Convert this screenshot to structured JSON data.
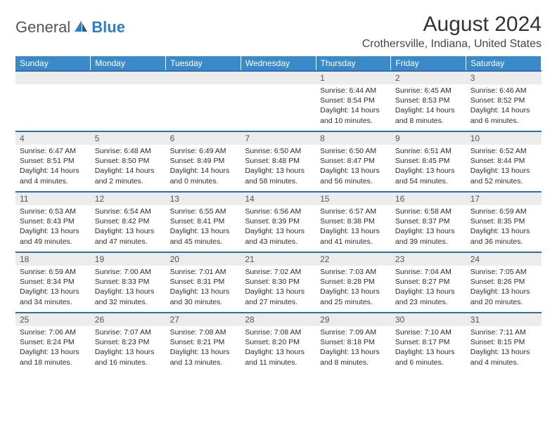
{
  "brand": {
    "part1": "General",
    "part2": "Blue"
  },
  "title": "August 2024",
  "location": "Crothersville, Indiana, United States",
  "colors": {
    "header_band": "#3a8ac9",
    "row_divider": "#2d6fa8",
    "daynum_bg": "#ececec",
    "text": "#2b2b2b",
    "brand_blue": "#2d7dc8"
  },
  "day_header_fontsize": 12,
  "cell_fontsize": 10.5,
  "days": [
    "Sunday",
    "Monday",
    "Tuesday",
    "Wednesday",
    "Thursday",
    "Friday",
    "Saturday"
  ],
  "weeks": [
    [
      null,
      null,
      null,
      null,
      {
        "n": "1",
        "sr": "Sunrise: 6:44 AM",
        "ss": "Sunset: 8:54 PM",
        "dl": "Daylight: 14 hours and 10 minutes."
      },
      {
        "n": "2",
        "sr": "Sunrise: 6:45 AM",
        "ss": "Sunset: 8:53 PM",
        "dl": "Daylight: 14 hours and 8 minutes."
      },
      {
        "n": "3",
        "sr": "Sunrise: 6:46 AM",
        "ss": "Sunset: 8:52 PM",
        "dl": "Daylight: 14 hours and 6 minutes."
      }
    ],
    [
      {
        "n": "4",
        "sr": "Sunrise: 6:47 AM",
        "ss": "Sunset: 8:51 PM",
        "dl": "Daylight: 14 hours and 4 minutes."
      },
      {
        "n": "5",
        "sr": "Sunrise: 6:48 AM",
        "ss": "Sunset: 8:50 PM",
        "dl": "Daylight: 14 hours and 2 minutes."
      },
      {
        "n": "6",
        "sr": "Sunrise: 6:49 AM",
        "ss": "Sunset: 8:49 PM",
        "dl": "Daylight: 14 hours and 0 minutes."
      },
      {
        "n": "7",
        "sr": "Sunrise: 6:50 AM",
        "ss": "Sunset: 8:48 PM",
        "dl": "Daylight: 13 hours and 58 minutes."
      },
      {
        "n": "8",
        "sr": "Sunrise: 6:50 AM",
        "ss": "Sunset: 8:47 PM",
        "dl": "Daylight: 13 hours and 56 minutes."
      },
      {
        "n": "9",
        "sr": "Sunrise: 6:51 AM",
        "ss": "Sunset: 8:45 PM",
        "dl": "Daylight: 13 hours and 54 minutes."
      },
      {
        "n": "10",
        "sr": "Sunrise: 6:52 AM",
        "ss": "Sunset: 8:44 PM",
        "dl": "Daylight: 13 hours and 52 minutes."
      }
    ],
    [
      {
        "n": "11",
        "sr": "Sunrise: 6:53 AM",
        "ss": "Sunset: 8:43 PM",
        "dl": "Daylight: 13 hours and 49 minutes."
      },
      {
        "n": "12",
        "sr": "Sunrise: 6:54 AM",
        "ss": "Sunset: 8:42 PM",
        "dl": "Daylight: 13 hours and 47 minutes."
      },
      {
        "n": "13",
        "sr": "Sunrise: 6:55 AM",
        "ss": "Sunset: 8:41 PM",
        "dl": "Daylight: 13 hours and 45 minutes."
      },
      {
        "n": "14",
        "sr": "Sunrise: 6:56 AM",
        "ss": "Sunset: 8:39 PM",
        "dl": "Daylight: 13 hours and 43 minutes."
      },
      {
        "n": "15",
        "sr": "Sunrise: 6:57 AM",
        "ss": "Sunset: 8:38 PM",
        "dl": "Daylight: 13 hours and 41 minutes."
      },
      {
        "n": "16",
        "sr": "Sunrise: 6:58 AM",
        "ss": "Sunset: 8:37 PM",
        "dl": "Daylight: 13 hours and 39 minutes."
      },
      {
        "n": "17",
        "sr": "Sunrise: 6:59 AM",
        "ss": "Sunset: 8:35 PM",
        "dl": "Daylight: 13 hours and 36 minutes."
      }
    ],
    [
      {
        "n": "18",
        "sr": "Sunrise: 6:59 AM",
        "ss": "Sunset: 8:34 PM",
        "dl": "Daylight: 13 hours and 34 minutes."
      },
      {
        "n": "19",
        "sr": "Sunrise: 7:00 AM",
        "ss": "Sunset: 8:33 PM",
        "dl": "Daylight: 13 hours and 32 minutes."
      },
      {
        "n": "20",
        "sr": "Sunrise: 7:01 AM",
        "ss": "Sunset: 8:31 PM",
        "dl": "Daylight: 13 hours and 30 minutes."
      },
      {
        "n": "21",
        "sr": "Sunrise: 7:02 AM",
        "ss": "Sunset: 8:30 PM",
        "dl": "Daylight: 13 hours and 27 minutes."
      },
      {
        "n": "22",
        "sr": "Sunrise: 7:03 AM",
        "ss": "Sunset: 8:28 PM",
        "dl": "Daylight: 13 hours and 25 minutes."
      },
      {
        "n": "23",
        "sr": "Sunrise: 7:04 AM",
        "ss": "Sunset: 8:27 PM",
        "dl": "Daylight: 13 hours and 23 minutes."
      },
      {
        "n": "24",
        "sr": "Sunrise: 7:05 AM",
        "ss": "Sunset: 8:26 PM",
        "dl": "Daylight: 13 hours and 20 minutes."
      }
    ],
    [
      {
        "n": "25",
        "sr": "Sunrise: 7:06 AM",
        "ss": "Sunset: 8:24 PM",
        "dl": "Daylight: 13 hours and 18 minutes."
      },
      {
        "n": "26",
        "sr": "Sunrise: 7:07 AM",
        "ss": "Sunset: 8:23 PM",
        "dl": "Daylight: 13 hours and 16 minutes."
      },
      {
        "n": "27",
        "sr": "Sunrise: 7:08 AM",
        "ss": "Sunset: 8:21 PM",
        "dl": "Daylight: 13 hours and 13 minutes."
      },
      {
        "n": "28",
        "sr": "Sunrise: 7:08 AM",
        "ss": "Sunset: 8:20 PM",
        "dl": "Daylight: 13 hours and 11 minutes."
      },
      {
        "n": "29",
        "sr": "Sunrise: 7:09 AM",
        "ss": "Sunset: 8:18 PM",
        "dl": "Daylight: 13 hours and 8 minutes."
      },
      {
        "n": "30",
        "sr": "Sunrise: 7:10 AM",
        "ss": "Sunset: 8:17 PM",
        "dl": "Daylight: 13 hours and 6 minutes."
      },
      {
        "n": "31",
        "sr": "Sunrise: 7:11 AM",
        "ss": "Sunset: 8:15 PM",
        "dl": "Daylight: 13 hours and 4 minutes."
      }
    ]
  ]
}
